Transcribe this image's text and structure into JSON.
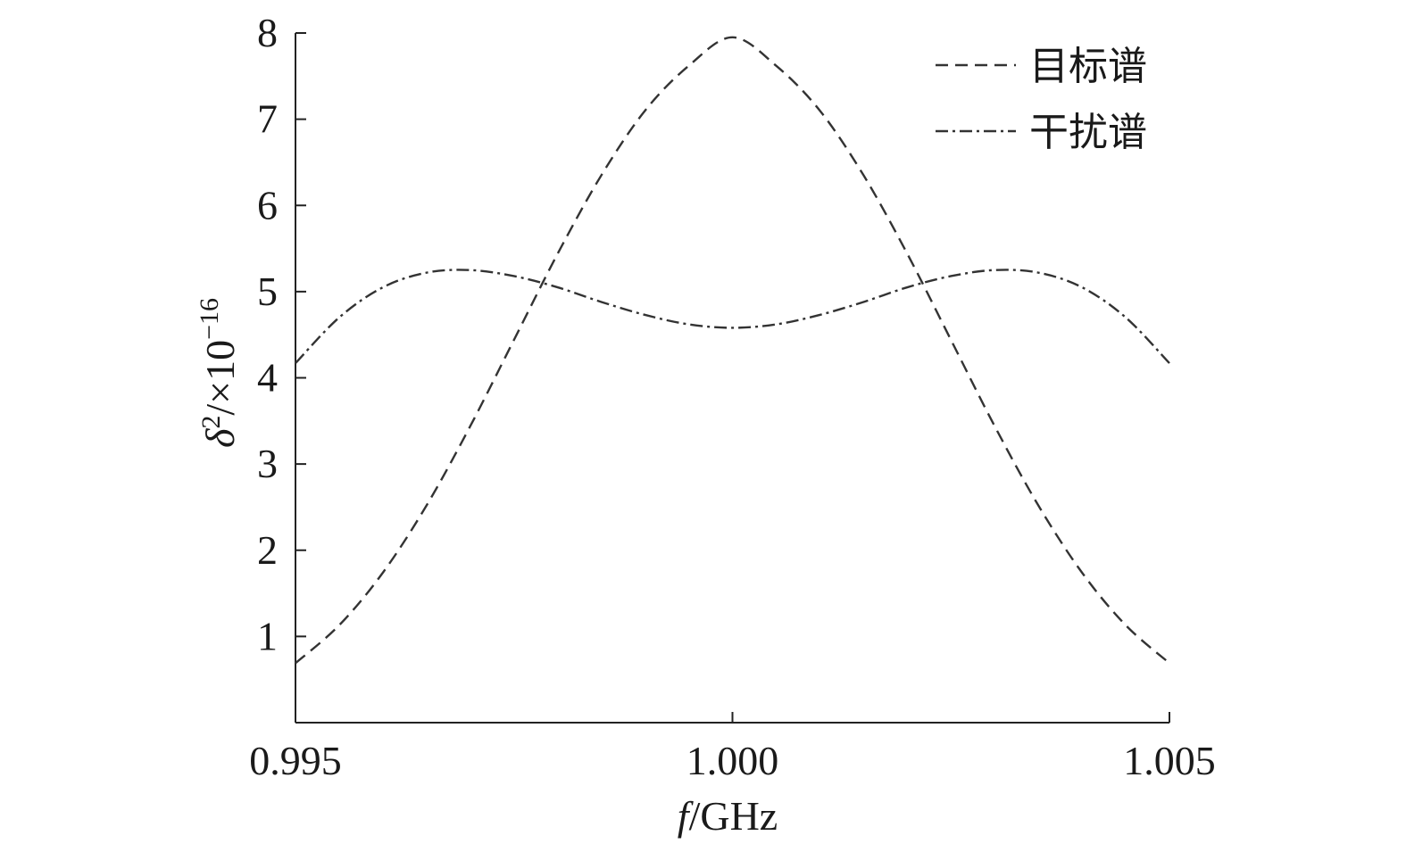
{
  "chart_data": {
    "type": "line",
    "title": "",
    "xlabel_italic": "f",
    "xlabel_rest": "/GHz",
    "ylabel_symbol": "δ",
    "ylabel_sup": "2",
    "ylabel_mid": "/×10",
    "ylabel_exp": "−16",
    "xlim": [
      0.995,
      1.005
    ],
    "ylim": [
      0,
      8
    ],
    "x_ticks": [
      0.995,
      1.0,
      1.005
    ],
    "x_tick_labels": [
      "0.995",
      "1.000",
      "1.005"
    ],
    "y_ticks": [
      1,
      2,
      3,
      4,
      5,
      6,
      7,
      8
    ],
    "y_tick_labels": [
      "1",
      "2",
      "3",
      "4",
      "5",
      "6",
      "7",
      "8"
    ],
    "legend_position": "top-right",
    "series": [
      {
        "name": "目标谱",
        "style": "dashed",
        "x": [
          0.995,
          0.9955,
          0.996,
          0.9965,
          0.997,
          0.9975,
          0.998,
          0.9985,
          0.999,
          0.9995,
          1.0,
          1.0005,
          1.001,
          1.0015,
          1.002,
          1.0025,
          1.003,
          1.0035,
          1.004,
          1.0045,
          1.005
        ],
        "y": [
          0.69,
          1.13,
          1.74,
          2.52,
          3.44,
          4.44,
          5.44,
          6.35,
          7.1,
          7.62,
          7.95,
          7.62,
          7.1,
          6.35,
          5.44,
          4.44,
          3.44,
          2.52,
          1.74,
          1.13,
          0.69
        ]
      },
      {
        "name": "干扰谱",
        "style": "dash-dot",
        "x": [
          0.995,
          0.9955,
          0.996,
          0.9965,
          0.997,
          0.9975,
          0.998,
          0.9985,
          0.999,
          0.9995,
          1.0,
          1.0005,
          1.001,
          1.0015,
          1.002,
          1.0025,
          1.003,
          1.0035,
          1.004,
          1.0045,
          1.005
        ],
        "y": [
          4.17,
          4.7,
          5.05,
          5.22,
          5.25,
          5.18,
          5.05,
          4.88,
          4.73,
          4.62,
          4.58,
          4.62,
          4.73,
          4.88,
          5.05,
          5.18,
          5.25,
          5.22,
          5.05,
          4.7,
          4.17
        ]
      }
    ]
  }
}
